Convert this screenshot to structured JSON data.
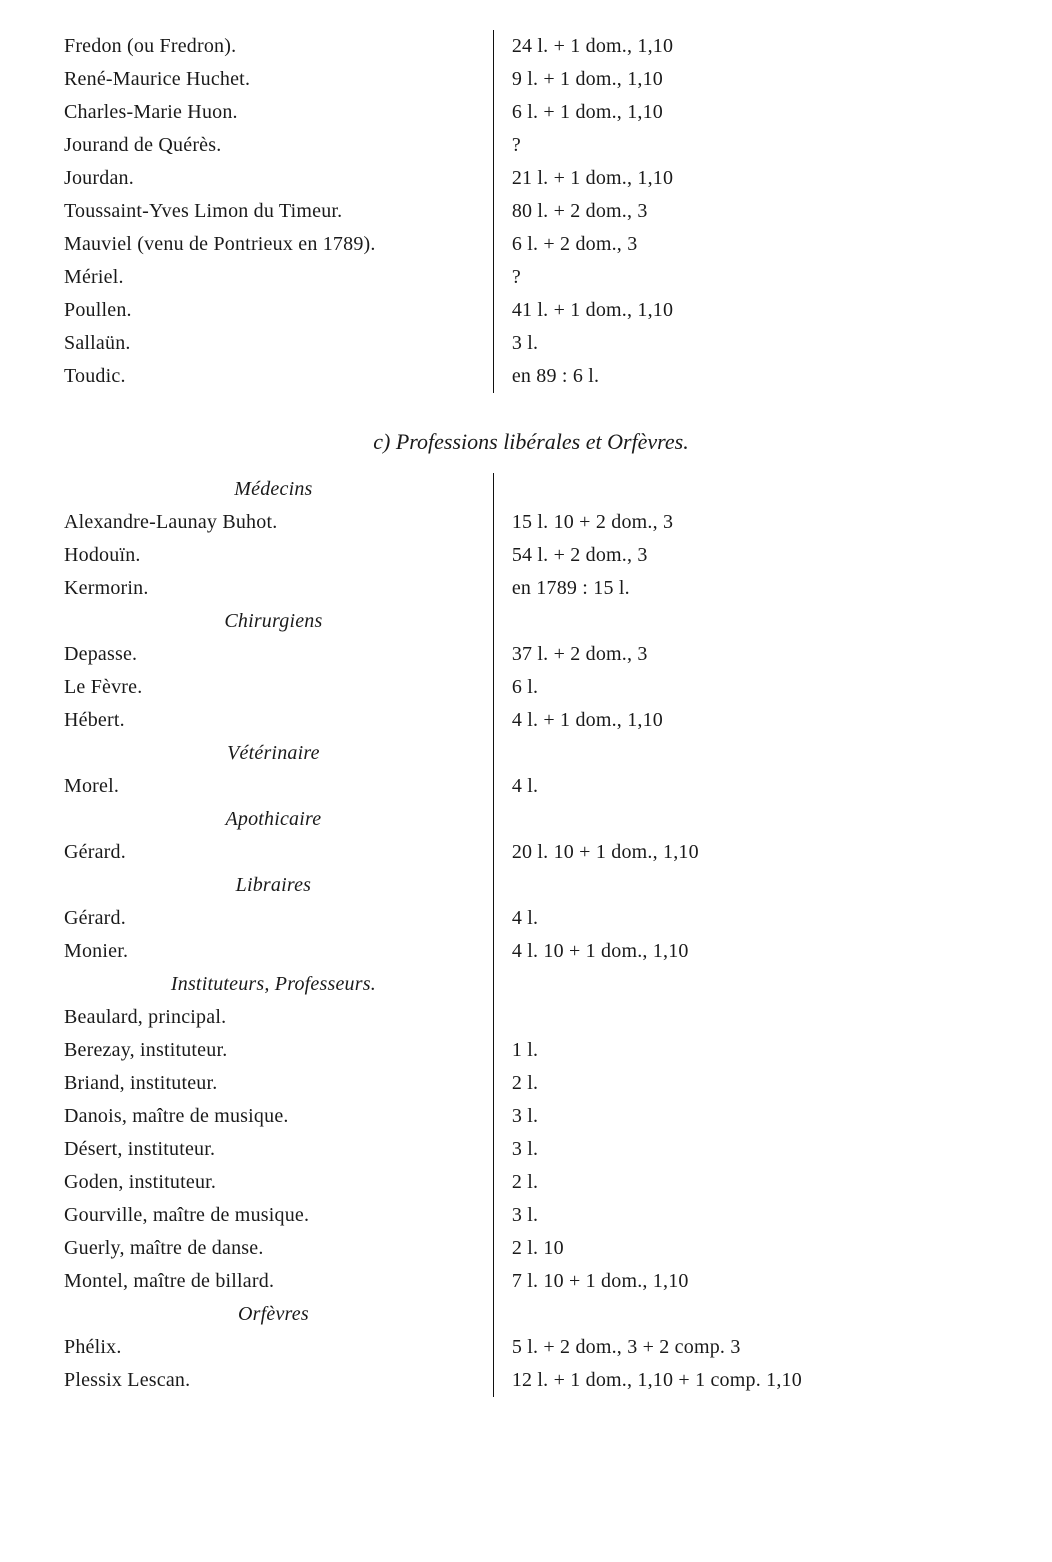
{
  "top_block": {
    "rows": [
      {
        "l": "Fredon (ou Fredron).",
        "r": "24 l. + 1 dom., 1,10"
      },
      {
        "l": "René-Maurice Huchet.",
        "r": "9 l. + 1 dom., 1,10"
      },
      {
        "l": "Charles-Marie Huon.",
        "r": "6 l. + 1 dom., 1,10"
      },
      {
        "l": "Jourand de Quérès.",
        "r": "?"
      },
      {
        "l": "Jourdan.",
        "r": "21 l. + 1 dom., 1,10"
      },
      {
        "l": "Toussaint-Yves Limon du Timeur.",
        "r": "80 l. + 2 dom., 3"
      },
      {
        "l": "Mauviel (venu de Pontrieux en 1789).",
        "r": "6 l. + 2 dom., 3"
      },
      {
        "l": "Mériel.",
        "r": "?"
      },
      {
        "l": "Poullen.",
        "r": "41 l. + 1 dom., 1,10"
      },
      {
        "l": "Sallaün.",
        "r": "3 l."
      },
      {
        "l": "Toudic.",
        "r": "en 89 : 6 l."
      }
    ]
  },
  "section_c_title": "c)  Professions  libérales  et  Orfèvres.",
  "groups": [
    {
      "heading": "Médecins",
      "rows": [
        {
          "l": "Alexandre-Launay Buhot.",
          "r": "15 l. 10 + 2 dom., 3"
        },
        {
          "l": "Hodouïn.",
          "r": "54 l. + 2 dom., 3"
        },
        {
          "l": "Kermorin.",
          "r": "en 1789 : 15 l."
        }
      ]
    },
    {
      "heading": "Chirurgiens",
      "rows": [
        {
          "l": "Depasse.",
          "r": "37 l. + 2 dom., 3"
        },
        {
          "l": "Le Fèvre.",
          "r": "6 l."
        },
        {
          "l": "Hébert.",
          "r": "4 l. + 1 dom., 1,10"
        }
      ]
    },
    {
      "heading": "Vétérinaire",
      "rows": [
        {
          "l": "Morel.",
          "r": "4 l."
        }
      ]
    },
    {
      "heading": "Apothicaire",
      "rows": [
        {
          "l": "Gérard.",
          "r": "20 l. 10 + 1 dom., 1,10"
        }
      ]
    },
    {
      "heading": "Libraires",
      "rows": [
        {
          "l": "Gérard.",
          "r": "4 l."
        },
        {
          "l": "Monier.",
          "r": "4 l. 10 + 1 dom., 1,10"
        }
      ]
    },
    {
      "heading": "Instituteurs, Professeurs.",
      "rows": [
        {
          "l": "Beaulard, principal.",
          "r": ""
        },
        {
          "l": "Berezay, instituteur.",
          "r": "1 l."
        },
        {
          "l": "Briand, instituteur.",
          "r": "2 l."
        },
        {
          "l": "Danois, maître de musique.",
          "r": "3 l."
        },
        {
          "l": "Désert, instituteur.",
          "r": "3 l."
        },
        {
          "l": "Goden, instituteur.",
          "r": "2 l."
        },
        {
          "l": "Gourville, maître de musique.",
          "r": "3 l."
        },
        {
          "l": "Guerly, maître de danse.",
          "r": "2 l. 10"
        },
        {
          "l": "Montel, maître de billard.",
          "r": "7 l. 10 + 1 dom., 1,10"
        }
      ]
    },
    {
      "heading": "Orfèvres",
      "rows": [
        {
          "l": "Phélix.",
          "r": "5 l. + 2 dom., 3 + 2 comp. 3"
        },
        {
          "l": "Plessix Lescan.",
          "r": "12 l. + 1 dom., 1,10 + 1 comp. 1,10"
        }
      ]
    }
  ]
}
